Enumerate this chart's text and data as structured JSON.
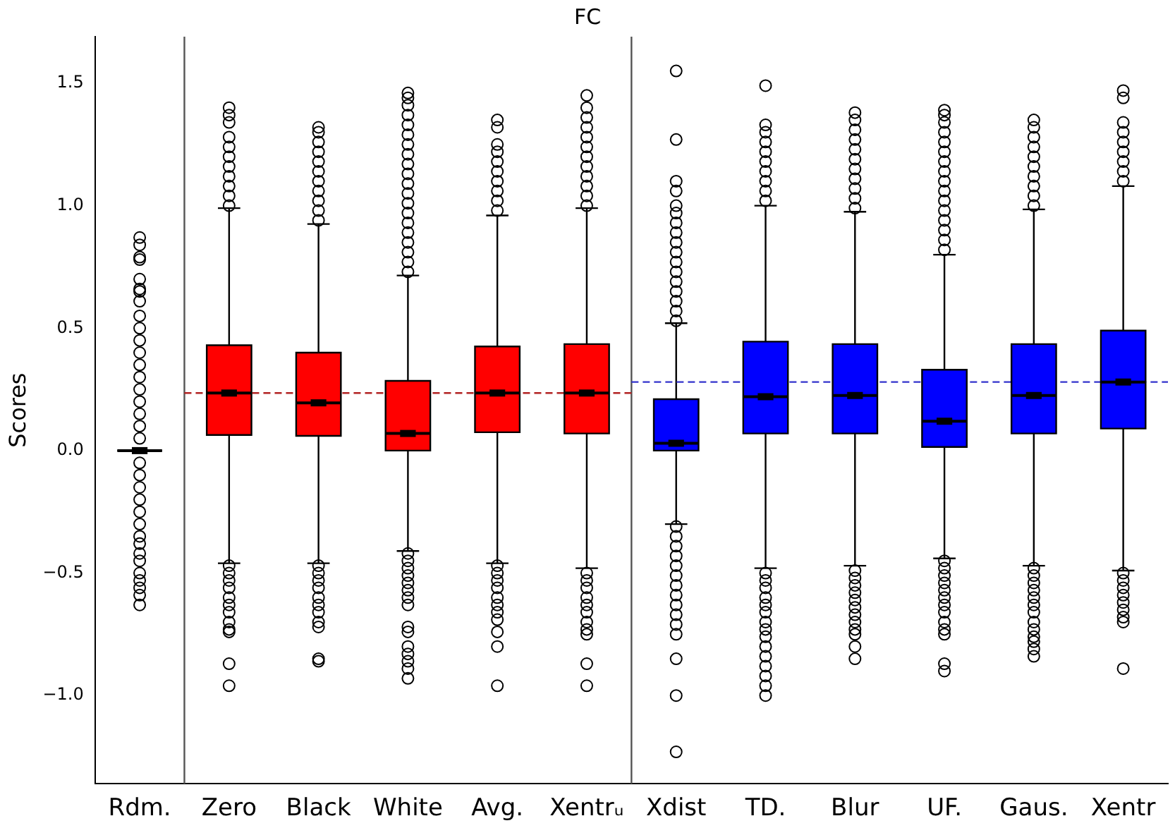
{
  "chart_data": {
    "type": "box",
    "title": "FC",
    "ylabel": "Scores",
    "categories": [
      "Rdm.",
      "Zero",
      "Black",
      "White",
      "Avg.",
      "Xentrᵤ",
      "Xdist",
      "TD.",
      "Blur",
      "UF.",
      "Gaus.",
      "Xentr"
    ],
    "colors": [
      "#000000",
      "#ff0000",
      "#ff0000",
      "#ff0000",
      "#ff0000",
      "#ff0000",
      "#0000ff",
      "#0000ff",
      "#0000ff",
      "#0000ff",
      "#0000ff",
      "#0000ff"
    ],
    "boxes": [
      {
        "low": 0,
        "q1": 0,
        "median": 0,
        "q3": 0,
        "high": 0,
        "outliers": [
          0.87,
          0.84,
          0.79,
          0.78,
          0.7,
          0.66,
          0.65,
          0.61,
          0.55,
          0.5,
          0.45,
          0.4,
          0.35,
          0.3,
          0.25,
          0.2,
          0.15,
          0.1,
          0.05,
          -0.05,
          -0.1,
          -0.15,
          -0.2,
          -0.25,
          -0.3,
          -0.35,
          -0.38,
          -0.42,
          -0.45,
          -0.5,
          -0.53,
          -0.56,
          -0.59,
          -0.63
        ]
      },
      {
        "low": -0.46,
        "q1": 0.064,
        "median": 0.235,
        "q3": 0.43,
        "high": 0.99,
        "outliers": [
          1.0,
          1.04,
          1.08,
          1.12,
          1.16,
          1.2,
          1.24,
          1.28,
          1.34,
          1.37,
          1.4,
          -0.47,
          -0.5,
          -0.53,
          -0.56,
          -0.6,
          -0.63,
          -0.66,
          -0.7,
          -0.73,
          -0.74,
          -0.87,
          -0.96
        ]
      },
      {
        "low": -0.46,
        "q1": 0.06,
        "median": 0.195,
        "q3": 0.4,
        "high": 0.925,
        "outliers": [
          0.94,
          0.98,
          1.02,
          1.06,
          1.1,
          1.14,
          1.18,
          1.22,
          1.26,
          1.3,
          1.32,
          -0.47,
          -0.5,
          -0.53,
          -0.56,
          -0.6,
          -0.63,
          -0.66,
          -0.7,
          -0.72,
          -0.85,
          -0.86
        ]
      },
      {
        "low": -0.41,
        "q1": 0.0,
        "median": 0.07,
        "q3": 0.285,
        "high": 0.715,
        "outliers": [
          0.73,
          0.77,
          0.81,
          0.85,
          0.89,
          0.93,
          0.97,
          1.01,
          1.05,
          1.09,
          1.13,
          1.17,
          1.21,
          1.25,
          1.29,
          1.33,
          1.37,
          1.41,
          1.44,
          1.46,
          -0.42,
          -0.45,
          -0.48,
          -0.51,
          -0.54,
          -0.57,
          -0.6,
          -0.63,
          -0.72,
          -0.74,
          -0.8,
          -0.83,
          -0.86,
          -0.89,
          -0.93
        ]
      },
      {
        "low": -0.46,
        "q1": 0.075,
        "median": 0.235,
        "q3": 0.425,
        "high": 0.96,
        "outliers": [
          0.98,
          1.02,
          1.06,
          1.1,
          1.14,
          1.18,
          1.22,
          1.25,
          1.32,
          1.35,
          -0.47,
          -0.5,
          -0.53,
          -0.56,
          -0.6,
          -0.63,
          -0.66,
          -0.69,
          -0.74,
          -0.8,
          -0.96
        ]
      },
      {
        "low": -0.48,
        "q1": 0.07,
        "median": 0.235,
        "q3": 0.435,
        "high": 0.99,
        "outliers": [
          1.0,
          1.04,
          1.08,
          1.12,
          1.16,
          1.2,
          1.24,
          1.28,
          1.32,
          1.36,
          1.4,
          1.45,
          -0.5,
          -0.53,
          -0.56,
          -0.6,
          -0.63,
          -0.66,
          -0.7,
          -0.73,
          -0.75,
          -0.87,
          -0.96
        ]
      },
      {
        "low": -0.3,
        "q1": 0.0,
        "median": 0.03,
        "q3": 0.21,
        "high": 0.52,
        "outliers": [
          0.53,
          0.57,
          0.61,
          0.65,
          0.69,
          0.73,
          0.77,
          0.81,
          0.85,
          0.89,
          0.93,
          0.97,
          1.0,
          1.06,
          1.1,
          1.27,
          1.55,
          -0.31,
          -0.35,
          -0.39,
          -0.43,
          -0.47,
          -0.51,
          -0.55,
          -0.59,
          -0.63,
          -0.67,
          -0.71,
          -0.75,
          -0.85,
          -1.0,
          -1.23
        ]
      },
      {
        "low": -0.48,
        "q1": 0.07,
        "median": 0.22,
        "q3": 0.445,
        "high": 1.0,
        "outliers": [
          1.02,
          1.06,
          1.1,
          1.14,
          1.18,
          1.22,
          1.26,
          1.3,
          1.33,
          1.49,
          -0.5,
          -0.53,
          -0.56,
          -0.6,
          -0.63,
          -0.66,
          -0.7,
          -0.73,
          -0.76,
          -0.8,
          -0.84,
          -0.88,
          -0.92,
          -0.96,
          -1.0
        ]
      },
      {
        "low": -0.47,
        "q1": 0.07,
        "median": 0.225,
        "q3": 0.435,
        "high": 0.975,
        "outliers": [
          0.99,
          1.03,
          1.07,
          1.11,
          1.15,
          1.19,
          1.23,
          1.27,
          1.31,
          1.35,
          1.38,
          -0.49,
          -0.52,
          -0.55,
          -0.58,
          -0.61,
          -0.64,
          -0.67,
          -0.7,
          -0.73,
          -0.75,
          -0.8,
          -0.85
        ]
      },
      {
        "low": -0.44,
        "q1": 0.015,
        "median": 0.12,
        "q3": 0.33,
        "high": 0.8,
        "outliers": [
          0.82,
          0.86,
          0.9,
          0.94,
          0.98,
          1.02,
          1.06,
          1.1,
          1.14,
          1.18,
          1.22,
          1.26,
          1.3,
          1.34,
          1.37,
          1.39,
          -0.45,
          -0.48,
          -0.51,
          -0.54,
          -0.57,
          -0.6,
          -0.63,
          -0.66,
          -0.7,
          -0.73,
          -0.75,
          -0.87,
          -0.9
        ]
      },
      {
        "low": -0.47,
        "q1": 0.07,
        "median": 0.225,
        "q3": 0.435,
        "high": 0.985,
        "outliers": [
          1.0,
          1.04,
          1.08,
          1.12,
          1.16,
          1.2,
          1.24,
          1.28,
          1.32,
          1.35,
          -0.48,
          -0.51,
          -0.54,
          -0.57,
          -0.6,
          -0.63,
          -0.66,
          -0.7,
          -0.73,
          -0.76,
          -0.78,
          -0.81,
          -0.84
        ]
      },
      {
        "low": -0.49,
        "q1": 0.09,
        "median": 0.28,
        "q3": 0.49,
        "high": 1.08,
        "outliers": [
          1.1,
          1.14,
          1.18,
          1.22,
          1.26,
          1.3,
          1.34,
          1.44,
          1.47,
          -0.5,
          -0.53,
          -0.56,
          -0.59,
          -0.62,
          -0.65,
          -0.68,
          -0.7,
          -0.89
        ]
      }
    ],
    "ylim": [
      -1.36,
      1.69
    ],
    "yticks": [
      {
        "value": -1,
        "label": "−1.0"
      },
      {
        "value": -0.5,
        "label": "−0.5"
      },
      {
        "value": 0,
        "label": "0.0"
      },
      {
        "value": 0.5,
        "label": "0.5"
      },
      {
        "value": 1,
        "label": "1.0"
      },
      {
        "value": 1.5,
        "label": "1.5"
      }
    ],
    "ref_lines": [
      {
        "axis": "y",
        "value": 0.235,
        "color": "#b22222",
        "line_style": "dashed"
      },
      {
        "axis": "y",
        "value": 0.28,
        "color": "#3333cc",
        "line_style": "dashed"
      }
    ],
    "grid": false,
    "legend": false
  }
}
